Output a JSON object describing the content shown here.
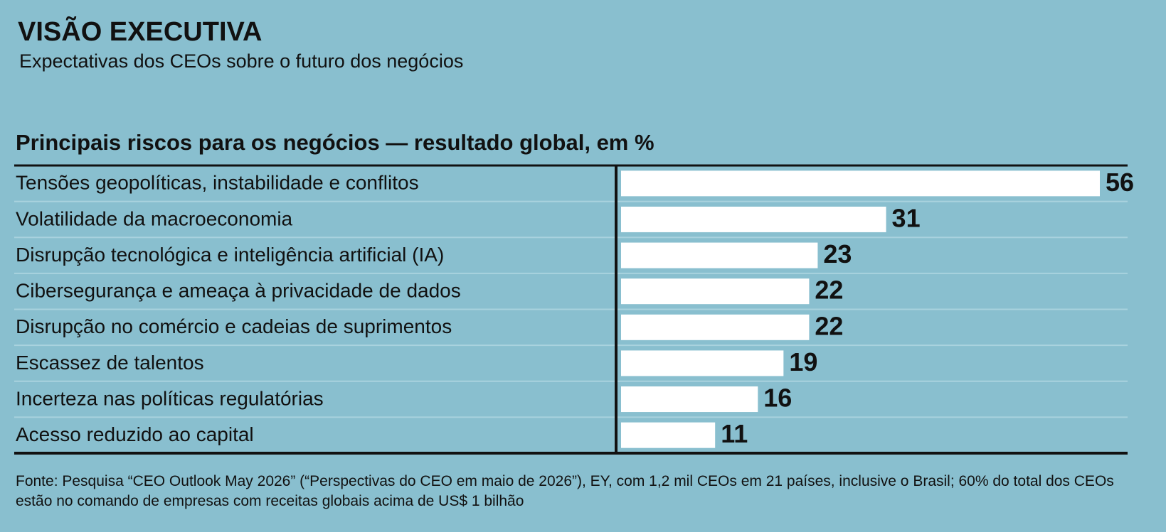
{
  "chart_data": {
    "type": "bar",
    "title": "VISÃO EXECUTIVA",
    "subtitle": "Expectativas dos CEOs sobre o futuro dos negócios",
    "chart_title": "Principais riscos para os negócios — resultado global, em %",
    "categories": [
      "Tensões geopolíticas, instabilidade e conflitos",
      "Volatilidade da macroeconomia",
      "Disrupção tecnológica e inteligência artificial (IA)",
      "Cibersegurança e ameaça à privacidade de dados",
      "Disrupção no comércio e cadeias de suprimentos",
      "Escassez de talentos",
      "Incerteza nas políticas regulatórias",
      "Acesso reduzido ao capital"
    ],
    "values": [
      56,
      31,
      23,
      22,
      22,
      19,
      16,
      11
    ],
    "color": "#ffffff",
    "source": "Fonte: Pesquisa “CEO Outlook May 2026” (“Perspectivas do CEO em maio de 2026”), EY, com 1,2 mil CEOs em 21 países, inclusive o Brasil; 60% do total dos CEOs estão no comando de empresas com receitas globais acima de US$ 1 bilhão"
  }
}
